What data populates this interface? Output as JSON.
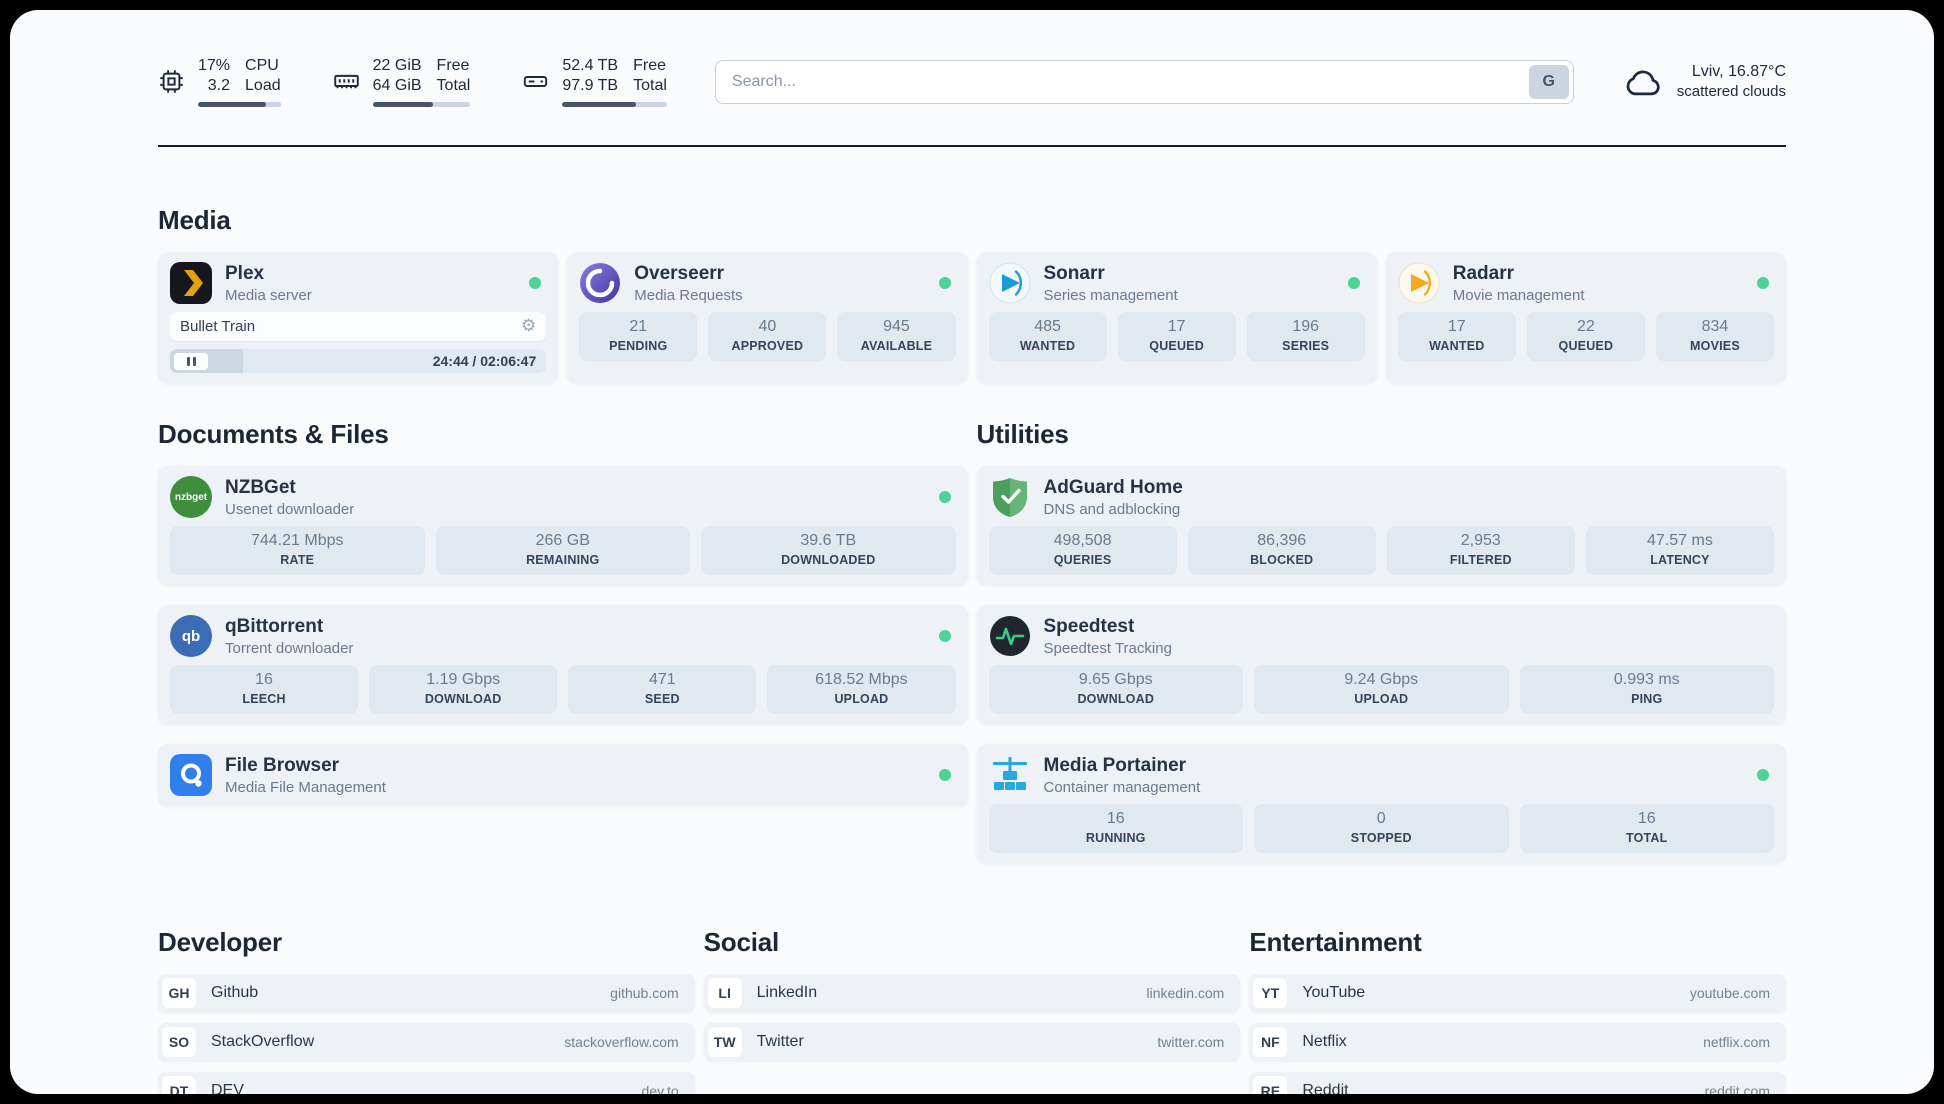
{
  "colors": {
    "status_green": "#4ed396",
    "page_bg": "#fafbfd",
    "card_bg": "#eef1f6",
    "stat_bg": "#e2e8ef",
    "plex_yellow": "#e5a00d",
    "sonarr_blue": "#1a9cd8",
    "radarr_yellow": "#f6a81e",
    "adguard_green": "#66b574",
    "portainer_blue": "#2aa7dd",
    "divider_dark": "#111827"
  },
  "header": {
    "cpu": {
      "value1": "17%",
      "value2": "3.2",
      "label1": "CPU",
      "label2": "Load",
      "progress": 82
    },
    "memory": {
      "value1": "22 GiB",
      "value2": "64 GiB",
      "label1": "Free",
      "label2": "Total",
      "progress": 62
    },
    "disk": {
      "value1": "52.4 TB",
      "value2": "97.9 TB",
      "label1": "Free",
      "label2": "Total",
      "progress": 70
    },
    "search": {
      "placeholder": "Search...",
      "button_label": "G"
    },
    "weather": {
      "location": "Lviv, 16.87°C",
      "condition": "scattered clouds"
    }
  },
  "media": {
    "title": "Media",
    "cards": [
      {
        "name": "Plex",
        "desc": "Media server",
        "now_playing": "Bullet Train",
        "time": "24:44 / 02:06:47",
        "progress_pct": 19.5
      },
      {
        "name": "Overseerr",
        "desc": "Media Requests",
        "stats": [
          {
            "value": "21",
            "label": "PENDING"
          },
          {
            "value": "40",
            "label": "APPROVED"
          },
          {
            "value": "945",
            "label": "AVAILABLE"
          }
        ]
      },
      {
        "name": "Sonarr",
        "desc": "Series management",
        "stats": [
          {
            "value": "485",
            "label": "WANTED"
          },
          {
            "value": "17",
            "label": "QUEUED"
          },
          {
            "value": "196",
            "label": "SERIES"
          }
        ]
      },
      {
        "name": "Radarr",
        "desc": "Movie management",
        "stats": [
          {
            "value": "17",
            "label": "WANTED"
          },
          {
            "value": "22",
            "label": "QUEUED"
          },
          {
            "value": "834",
            "label": "MOVIES"
          }
        ]
      }
    ]
  },
  "documents": {
    "title": "Documents & Files",
    "cards": [
      {
        "name": "NZBGet",
        "desc": "Usenet downloader",
        "stats": [
          {
            "value": "744.21 Mbps",
            "label": "RATE"
          },
          {
            "value": "266 GB",
            "label": "REMAINING"
          },
          {
            "value": "39.6 TB",
            "label": "DOWNLOADED"
          }
        ]
      },
      {
        "name": "qBittorrent",
        "desc": "Torrent downloader",
        "stats": [
          {
            "value": "16",
            "label": "LEECH"
          },
          {
            "value": "1.19 Gbps",
            "label": "DOWNLOAD"
          },
          {
            "value": "471",
            "label": "SEED"
          },
          {
            "value": "618.52 Mbps",
            "label": "UPLOAD"
          }
        ]
      },
      {
        "name": "File Browser",
        "desc": "Media File Management"
      }
    ]
  },
  "utilities": {
    "title": "Utilities",
    "cards": [
      {
        "name": "AdGuard Home",
        "desc": "DNS and adblocking",
        "stats": [
          {
            "value": "498,508",
            "label": "QUERIES"
          },
          {
            "value": "86,396",
            "label": "BLOCKED"
          },
          {
            "value": "2,953",
            "label": "FILTERED"
          },
          {
            "value": "47.57 ms",
            "label": "LATENCY"
          }
        ]
      },
      {
        "name": "Speedtest",
        "desc": "Speedtest Tracking",
        "stats": [
          {
            "value": "9.65 Gbps",
            "label": "DOWNLOAD"
          },
          {
            "value": "9.24 Gbps",
            "label": "UPLOAD"
          },
          {
            "value": "0.993 ms",
            "label": "PING"
          }
        ]
      },
      {
        "name": "Media Portainer",
        "desc": "Container management",
        "stats": [
          {
            "value": "16",
            "label": "RUNNING"
          },
          {
            "value": "0",
            "label": "STOPPED"
          },
          {
            "value": "16",
            "label": "TOTAL"
          }
        ]
      }
    ]
  },
  "bookmarks": {
    "groups": [
      {
        "title": "Developer",
        "items": [
          {
            "abbr": "GH",
            "name": "Github",
            "url": "github.com"
          },
          {
            "abbr": "SO",
            "name": "StackOverflow",
            "url": "stackoverflow.com"
          },
          {
            "abbr": "DT",
            "name": "DEV",
            "url": "dev.to"
          }
        ]
      },
      {
        "title": "Social",
        "items": [
          {
            "abbr": "LI",
            "name": "LinkedIn",
            "url": "linkedin.com"
          },
          {
            "abbr": "TW",
            "name": "Twitter",
            "url": "twitter.com"
          }
        ]
      },
      {
        "title": "Entertainment",
        "items": [
          {
            "abbr": "YT",
            "name": "YouTube",
            "url": "youtube.com"
          },
          {
            "abbr": "NF",
            "name": "Netflix",
            "url": "netflix.com"
          },
          {
            "abbr": "RE",
            "name": "Reddit",
            "url": "reddit.com"
          }
        ]
      }
    ]
  },
  "icons": {
    "nzbget_label": "nzbget",
    "qbittorrent_label": "qb"
  }
}
